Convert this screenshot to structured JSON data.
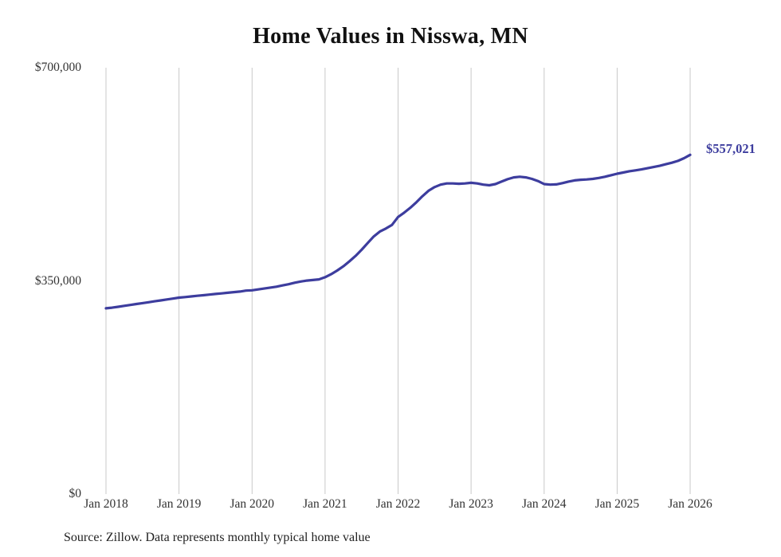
{
  "chart_data": {
    "type": "line",
    "title": "Home Values in Nisswa, MN",
    "source": "Source: Zillow. Data represents monthly typical home value",
    "end_label": "$557,021",
    "line_color": "#3d3d9e",
    "gridline_color": "#c9c9c9",
    "xlabel": "",
    "ylabel": "",
    "ylim": [
      0,
      700000
    ],
    "grid": "vertical-only",
    "legend": "none",
    "frequency": "monthly",
    "x_start": "Jan 2018",
    "x_end": "Jan 2026",
    "y_ticks": [
      {
        "value": 0,
        "label": "$0"
      },
      {
        "value": 350000,
        "label": "$350,000"
      },
      {
        "value": 700000,
        "label": "$700,000"
      }
    ],
    "x_tick_labels": [
      "Jan 2018",
      "Jan 2019",
      "Jan 2020",
      "Jan 2021",
      "Jan 2022",
      "Jan 2023",
      "Jan 2024",
      "Jan 2025",
      "Jan 2026"
    ],
    "values": [
      305000,
      306000,
      307500,
      309000,
      310500,
      312000,
      313500,
      315000,
      316500,
      318000,
      319500,
      321000,
      322500,
      323500,
      324500,
      325500,
      326500,
      327500,
      328500,
      329500,
      330500,
      331500,
      332500,
      334000,
      334500,
      336000,
      337500,
      339000,
      340500,
      342500,
      344500,
      347000,
      349000,
      350500,
      351500,
      352500,
      356000,
      361000,
      367000,
      374000,
      382000,
      391000,
      401000,
      412000,
      423000,
      431000,
      436000,
      442000,
      455000,
      462000,
      470000,
      479000,
      489000,
      498000,
      504000,
      508000,
      510000,
      510000,
      509500,
      510000,
      511000,
      510000,
      508000,
      507000,
      509000,
      513000,
      517000,
      520000,
      521000,
      520000,
      517500,
      514000,
      509000,
      508000,
      508500,
      510500,
      513000,
      515000,
      516000,
      516500,
      517500,
      519000,
      521000,
      523500,
      526000,
      528000,
      530000,
      531500,
      533000,
      535000,
      537000,
      539000,
      541500,
      544000,
      547000,
      551500,
      557021
    ]
  }
}
